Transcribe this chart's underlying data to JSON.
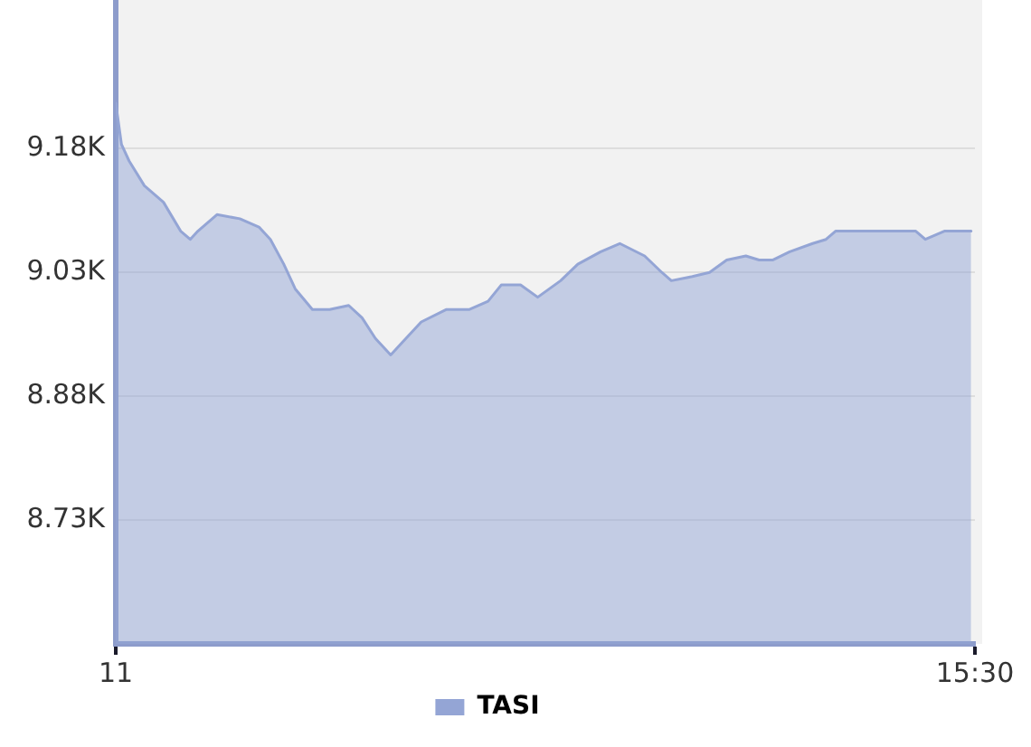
{
  "chart_data": {
    "type": "area",
    "x": [
      11.0,
      11.03,
      11.07,
      11.15,
      11.25,
      11.34,
      11.39,
      11.43,
      11.53,
      11.65,
      11.75,
      11.81,
      11.88,
      11.94,
      12.03,
      12.12,
      12.22,
      12.29,
      12.36,
      12.44,
      12.5,
      12.6,
      12.73,
      12.85,
      12.95,
      13.02,
      13.12,
      13.21,
      13.33,
      13.42,
      13.54,
      13.64,
      13.77,
      13.86,
      13.91,
      14.02,
      14.11,
      14.2,
      14.3,
      14.37,
      14.44,
      14.53,
      14.65,
      14.72,
      14.77,
      14.87,
      15.0,
      15.09,
      15.19,
      15.24,
      15.34,
      15.48
    ],
    "series": [
      {
        "name": "TASI",
        "color": "#94a5d5",
        "values": [
          9235,
          9185,
          9165,
          9135,
          9115,
          9080,
          9070,
          9080,
          9100,
          9095,
          9085,
          9070,
          9040,
          9010,
          8985,
          8985,
          8990,
          8975,
          8950,
          8930,
          8945,
          8970,
          8985,
          8985,
          8995,
          9015,
          9015,
          9000,
          9020,
          9040,
          9055,
          9065,
          9050,
          9030,
          9020,
          9025,
          9030,
          9045,
          9050,
          9045,
          9045,
          9055,
          9065,
          9070,
          9080,
          9080,
          9080,
          9080,
          9080,
          9070,
          9080,
          9080
        ]
      }
    ],
    "xlim": [
      11,
      15.5
    ],
    "xticks": [
      {
        "value": 11,
        "label": "11"
      },
      {
        "value": 15.5,
        "label": "15:30"
      }
    ],
    "ylim": [
      8580,
      9360
    ],
    "yticks": [
      {
        "value": 8730,
        "label": "8.73K"
      },
      {
        "value": 8880,
        "label": "8.88K"
      },
      {
        "value": 9030,
        "label": "9.03K"
      },
      {
        "value": 9180,
        "label": "9.18K"
      }
    ],
    "grid": "y",
    "legend": "bottom",
    "marker": "none"
  }
}
